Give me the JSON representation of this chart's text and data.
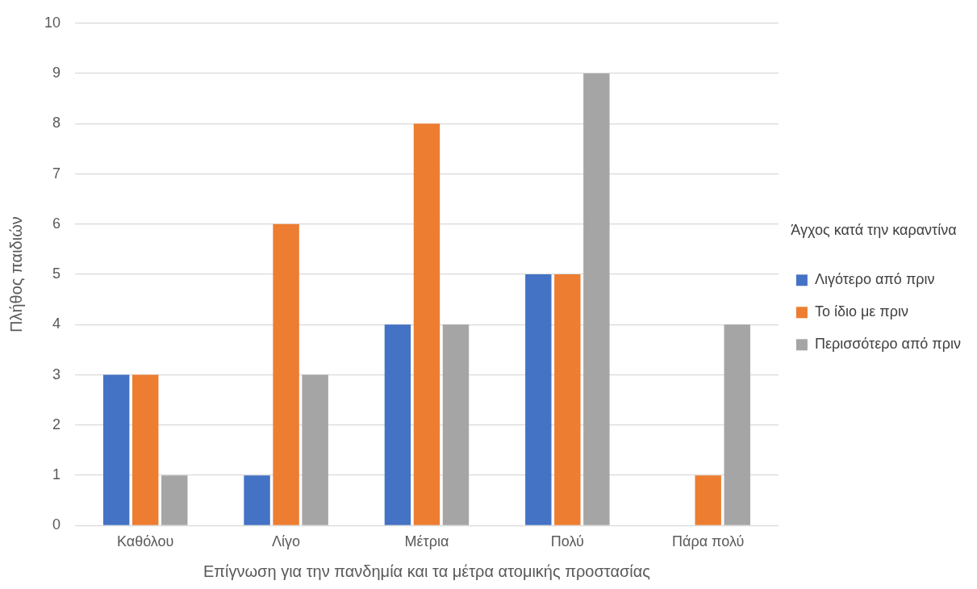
{
  "chart_data": {
    "type": "bar",
    "xlabel": "Επίγνωση για την πανδημία και τα μέτρα ατομικής προστασίας",
    "ylabel": "Πλήθος παιδιών",
    "legend_title": "Άγχος κατά την καραντίνα",
    "categories": [
      "Καθόλου",
      "Λίγο",
      "Μέτρια",
      "Πολύ",
      "Πάρα πολύ"
    ],
    "series": [
      {
        "name": "Λιγότερο από πριν",
        "color": "#4472c4",
        "values": [
          3,
          1,
          4,
          5,
          0
        ]
      },
      {
        "name": "Το ίδιο με πριν",
        "color": "#ed7d31",
        "values": [
          3,
          6,
          8,
          5,
          1
        ]
      },
      {
        "name": "Περισσότερο από πριν",
        "color": "#a5a5a5",
        "values": [
          1,
          3,
          4,
          9,
          4
        ]
      }
    ],
    "ylim": [
      0,
      10
    ],
    "yticks": [
      0,
      1,
      2,
      3,
      4,
      5,
      6,
      7,
      8,
      9,
      10
    ],
    "grid": "y",
    "legend": "right"
  }
}
